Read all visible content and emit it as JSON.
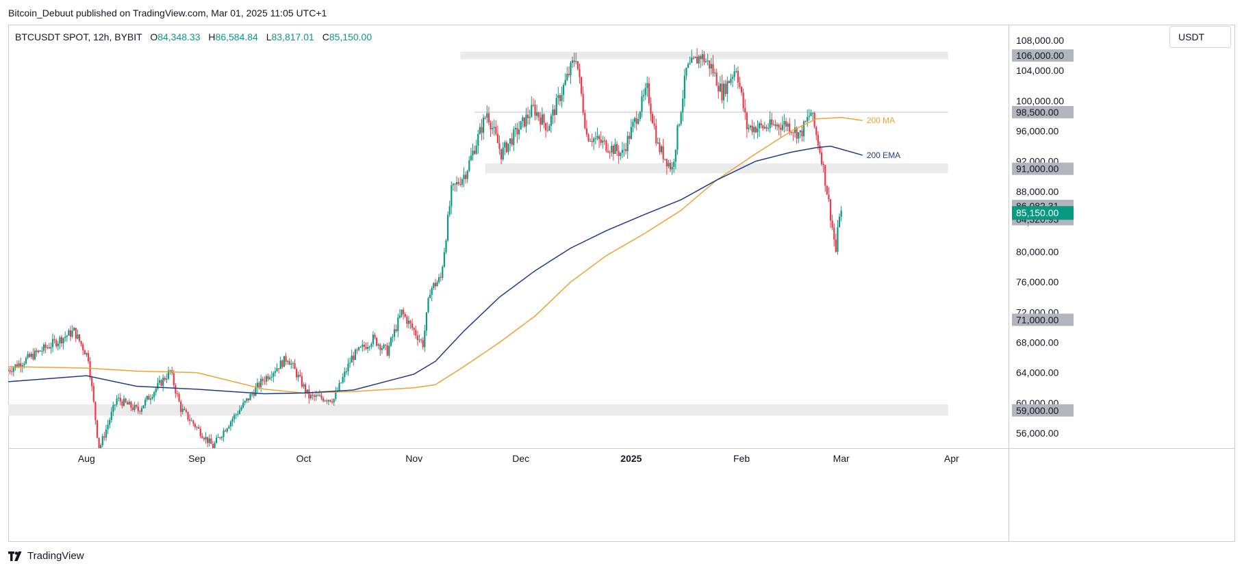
{
  "header": {
    "published_text": "Bitcoin_Debuut published on TradingView.com, Mar 01, 2025 11:05 UTC+1"
  },
  "symbol": {
    "name": "BTCUSDT SPOT, 12h, BYBIT",
    "open_label": "O",
    "open": "84,348.33",
    "high_label": "H",
    "high": "86,584.84",
    "low_label": "L",
    "low": "83,817.01",
    "close_label": "C",
    "close": "85,150.00"
  },
  "currency": "USDT",
  "footer": {
    "brand": "TradingView"
  },
  "colors": {
    "up": "#089981",
    "down": "#f23645",
    "ma": "#f0a030",
    "ema": "#1c3a8c",
    "zone": "#ebebeb",
    "axis_label_bg": "#b2b5be",
    "last_price_bg": "#089981"
  },
  "chart_data": {
    "type": "candlestick",
    "ylim": [
      54000,
      110000
    ],
    "x_ticks": [
      {
        "label": "Aug",
        "date": "2024-08-01",
        "bold": false
      },
      {
        "label": "Sep",
        "date": "2024-09-01",
        "bold": false
      },
      {
        "label": "Oct",
        "date": "2024-10-01",
        "bold": false
      },
      {
        "label": "Nov",
        "date": "2024-11-01",
        "bold": false
      },
      {
        "label": "Dec",
        "date": "2024-12-01",
        "bold": false
      },
      {
        "label": "2025",
        "date": "2025-01-01",
        "bold": true
      },
      {
        "label": "Feb",
        "date": "2025-02-01",
        "bold": false
      },
      {
        "label": "Mar",
        "date": "2025-03-01",
        "bold": false
      },
      {
        "label": "Apr",
        "date": "2025-04-01",
        "bold": false
      }
    ],
    "y_ticks": [
      {
        "value": 108000,
        "label": "108,000.00"
      },
      {
        "value": 104000,
        "label": "104,000.00"
      },
      {
        "value": 100000,
        "label": "100,000.00"
      },
      {
        "value": 96000,
        "label": "96,000.00"
      },
      {
        "value": 92000,
        "label": "92,000.00"
      },
      {
        "value": 88000,
        "label": "88,000.00"
      },
      {
        "value": 84000,
        "label": "84,000.00"
      },
      {
        "value": 80000,
        "label": "80,000.00"
      },
      {
        "value": 76000,
        "label": "76,000.00"
      },
      {
        "value": 72000,
        "label": "72,000.00"
      },
      {
        "value": 68000,
        "label": "68,000.00"
      },
      {
        "value": 64000,
        "label": "64,000.00"
      },
      {
        "value": 60000,
        "label": "60,000.00"
      },
      {
        "value": 56000,
        "label": "56,000.00"
      }
    ],
    "axis_labels": [
      {
        "value": 106000,
        "label": "106,000.00"
      },
      {
        "value": 98500,
        "label": "98,500.00"
      },
      {
        "value": 91000,
        "label": "91,000.00"
      },
      {
        "value": 86082.31,
        "label": "86,082.31"
      },
      {
        "value": 84320.93,
        "label": "84,320.93"
      },
      {
        "value": 71000,
        "label": "71,000.00"
      },
      {
        "value": 59000,
        "label": "59,000.00"
      }
    ],
    "last_price": {
      "value": 85150,
      "label": "85,150.00"
    },
    "zones": [
      {
        "from": 105500,
        "to": 106500,
        "start": "2024-11-14",
        "end": "2025-03-31"
      },
      {
        "from": 90400,
        "to": 91700,
        "start": "2024-11-21",
        "end": "2025-03-31"
      },
      {
        "from": 58300,
        "to": 59800,
        "start": "2024-07-10",
        "end": "2025-03-31"
      }
    ],
    "hlines": [
      {
        "value": 98500,
        "start": "2024-11-18",
        "end": "2025-03-31"
      }
    ],
    "indicators": [
      {
        "name": "200 MA",
        "color": "#f0a030",
        "points": [
          [
            "2024-07-10",
            64800
          ],
          [
            "2024-08-01",
            64600
          ],
          [
            "2024-08-15",
            64200
          ],
          [
            "2024-09-01",
            64000
          ],
          [
            "2024-09-20",
            61800
          ],
          [
            "2024-10-01",
            61300
          ],
          [
            "2024-10-15",
            61500
          ],
          [
            "2024-11-01",
            62000
          ],
          [
            "2024-11-07",
            62400
          ],
          [
            "2024-11-15",
            64800
          ],
          [
            "2024-11-25",
            68000
          ],
          [
            "2024-12-05",
            71500
          ],
          [
            "2024-12-15",
            76000
          ],
          [
            "2024-12-25",
            79500
          ],
          [
            "2025-01-05",
            82500
          ],
          [
            "2025-01-15",
            85500
          ],
          [
            "2025-01-25",
            89500
          ],
          [
            "2025-02-05",
            93000
          ],
          [
            "2025-02-15",
            96000
          ],
          [
            "2025-02-22",
            97600
          ],
          [
            "2025-03-01",
            97800
          ],
          [
            "2025-03-07",
            97400
          ]
        ]
      },
      {
        "name": "200 EMA",
        "color": "#1c3a8c",
        "points": [
          [
            "2024-07-10",
            62800
          ],
          [
            "2024-08-01",
            63600
          ],
          [
            "2024-08-15",
            62200
          ],
          [
            "2024-09-01",
            61800
          ],
          [
            "2024-09-20",
            61200
          ],
          [
            "2024-10-01",
            61300
          ],
          [
            "2024-10-15",
            61700
          ],
          [
            "2024-11-01",
            63800
          ],
          [
            "2024-11-07",
            65500
          ],
          [
            "2024-11-15",
            69500
          ],
          [
            "2024-11-25",
            74000
          ],
          [
            "2024-12-05",
            77500
          ],
          [
            "2024-12-15",
            80500
          ],
          [
            "2024-12-25",
            82800
          ],
          [
            "2025-01-05",
            85000
          ],
          [
            "2025-01-15",
            86900
          ],
          [
            "2025-01-25",
            89500
          ],
          [
            "2025-02-05",
            92000
          ],
          [
            "2025-02-15",
            93200
          ],
          [
            "2025-02-22",
            93800
          ],
          [
            "2025-02-26",
            94000
          ],
          [
            "2025-03-01",
            93600
          ],
          [
            "2025-03-07",
            92800
          ]
        ]
      }
    ],
    "price_path": [
      [
        "2024-07-10",
        64200
      ],
      [
        "2024-07-20",
        67000
      ],
      [
        "2024-07-29",
        69500
      ],
      [
        "2024-08-02",
        66000
      ],
      [
        "2024-08-05",
        53800
      ],
      [
        "2024-08-10",
        60500
      ],
      [
        "2024-08-16",
        59000
      ],
      [
        "2024-08-25",
        64200
      ],
      [
        "2024-08-28",
        59200
      ],
      [
        "2024-09-06",
        54200
      ],
      [
        "2024-09-10",
        57000
      ],
      [
        "2024-09-20",
        63000
      ],
      [
        "2024-09-27",
        66000
      ],
      [
        "2024-10-03",
        60800
      ],
      [
        "2024-10-10",
        60500
      ],
      [
        "2024-10-15",
        66000
      ],
      [
        "2024-10-21",
        68500
      ],
      [
        "2024-10-25",
        66800
      ],
      [
        "2024-10-29",
        72000
      ],
      [
        "2024-11-04",
        67800
      ],
      [
        "2024-11-06",
        75000
      ],
      [
        "2024-11-09",
        76500
      ],
      [
        "2024-11-12",
        88000
      ],
      [
        "2024-11-16",
        90500
      ],
      [
        "2024-11-22",
        98500
      ],
      [
        "2024-11-26",
        93000
      ],
      [
        "2024-12-05",
        99000
      ],
      [
        "2024-12-09",
        96500
      ],
      [
        "2024-12-17",
        106000
      ],
      [
        "2024-12-20",
        95500
      ],
      [
        "2024-12-30",
        93000
      ],
      [
        "2025-01-06",
        101500
      ],
      [
        "2025-01-09",
        94000
      ],
      [
        "2025-01-13",
        91000
      ],
      [
        "2025-01-17",
        104000
      ],
      [
        "2025-01-21",
        106000
      ],
      [
        "2025-01-24",
        104500
      ],
      [
        "2025-01-27",
        101000
      ],
      [
        "2025-01-31",
        104500
      ],
      [
        "2025-02-03",
        96500
      ],
      [
        "2025-02-08",
        96500
      ],
      [
        "2025-02-14",
        97000
      ],
      [
        "2025-02-18",
        95500
      ],
      [
        "2025-02-21",
        98500
      ],
      [
        "2025-02-24",
        92500
      ],
      [
        "2025-02-26",
        86500
      ],
      [
        "2025-02-28",
        80000
      ],
      [
        "2025-03-01",
        85150
      ]
    ]
  }
}
